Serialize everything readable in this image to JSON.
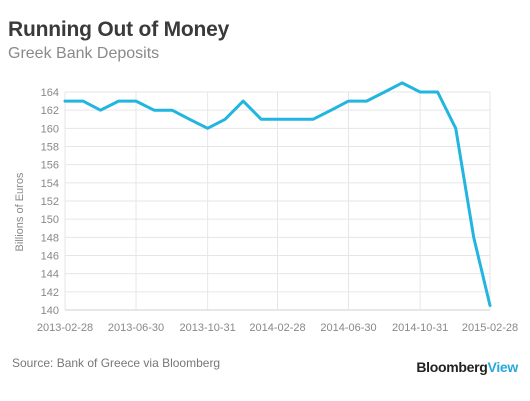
{
  "title": "Running Out of Money",
  "subtitle": "Greek Bank Deposits",
  "source": "Source: Bank of Greece via Bloomberg",
  "brand": {
    "name": "Bloomberg",
    "suffix": "View",
    "suffix_color": "#2aa7d9"
  },
  "chart_data": {
    "type": "line",
    "title": "Running Out of Money",
    "subtitle": "Greek Bank Deposits",
    "ylabel": "Billions of Euros",
    "xlabel": "",
    "ylim": [
      140,
      165
    ],
    "yticks": [
      140,
      142,
      144,
      146,
      148,
      150,
      152,
      154,
      156,
      158,
      160,
      162,
      164
    ],
    "xticks": [
      "2013-02-28",
      "2013-06-30",
      "2013-10-31",
      "2014-02-28",
      "2014-06-30",
      "2014-10-31",
      "2015-02-28"
    ],
    "grid": true,
    "line_color": "#22b5e0",
    "series": [
      {
        "x": [
          "2013-02-28",
          "2013-03-31",
          "2013-04-30",
          "2013-05-31",
          "2013-06-30",
          "2013-07-31",
          "2013-08-31",
          "2013-09-30",
          "2013-10-31",
          "2013-11-30",
          "2013-12-31",
          "2014-01-31",
          "2014-02-28",
          "2014-03-31",
          "2014-04-30",
          "2014-05-31",
          "2014-06-30",
          "2014-07-31",
          "2014-08-31",
          "2014-09-30",
          "2014-10-31",
          "2014-11-30",
          "2014-12-31",
          "2015-01-31",
          "2015-02-28"
        ],
        "values": [
          163,
          163,
          162,
          163,
          163,
          162,
          162,
          161,
          160,
          161,
          163,
          161,
          161,
          161,
          161,
          162,
          163,
          163,
          164,
          165,
          164,
          164,
          160,
          148,
          140.5
        ]
      }
    ]
  }
}
